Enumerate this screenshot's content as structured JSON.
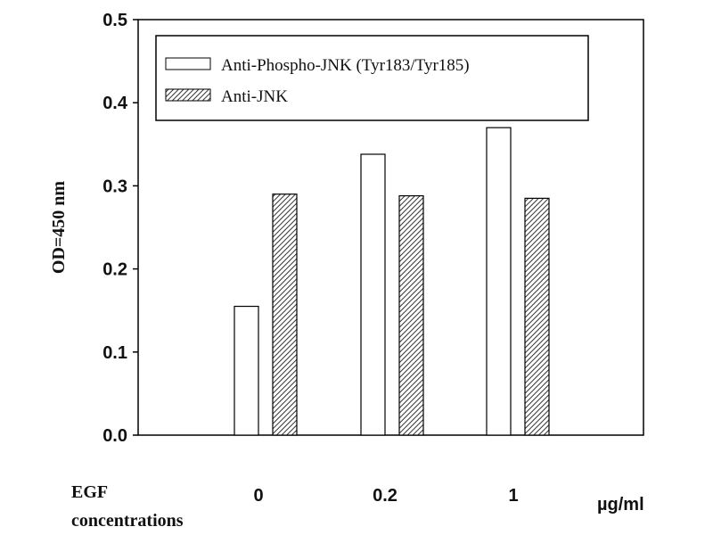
{
  "chart_data": {
    "type": "bar",
    "categories": [
      "0",
      "0.2",
      "1"
    ],
    "series": [
      {
        "name": "Anti-Phospho-JNK (Tyr183/Tyr185)",
        "values": [
          0.155,
          0.338,
          0.37
        ],
        "fill": "white"
      },
      {
        "name": "Anti-JNK",
        "values": [
          0.29,
          0.288,
          0.285
        ],
        "fill": "hatched"
      }
    ],
    "ylabel": "OD=450 nm",
    "xlabel_left": "EGF concentrations",
    "xlabel_left_lines": [
      "EGF",
      "concentrations"
    ],
    "x_unit": "µg/ml",
    "ylim": [
      0,
      0.5
    ],
    "yticks": [
      "0.0",
      "0.1",
      "0.2",
      "0.3",
      "0.4",
      "0.5"
    ],
    "grid": false,
    "legend_position": "top"
  }
}
